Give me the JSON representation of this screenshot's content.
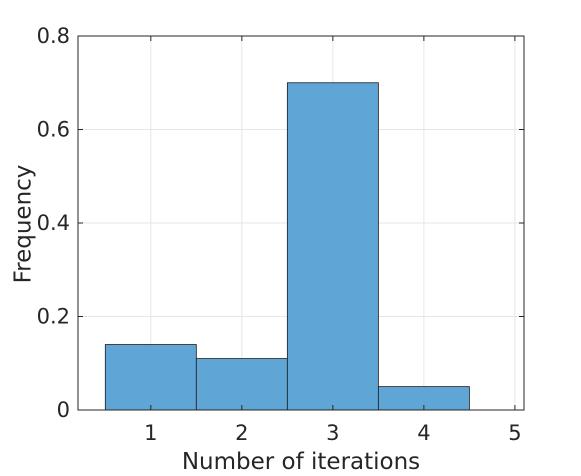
{
  "chart_data": {
    "type": "bar",
    "subtype": "histogram",
    "title": "",
    "xlabel": "Number of iterations",
    "ylabel": "Frequency",
    "categories": [
      "1",
      "2",
      "3",
      "4",
      "5"
    ],
    "x": [
      1,
      2,
      3,
      4,
      5
    ],
    "values": [
      0.14,
      0.11,
      0.7,
      0.05,
      0.0
    ],
    "bin_width": 1,
    "xlim": [
      0.2,
      5.1
    ],
    "ylim": [
      0,
      0.8
    ],
    "xticks": [
      1,
      2,
      3,
      4,
      5
    ],
    "xtick_labels": [
      "1",
      "2",
      "3",
      "4",
      "5"
    ],
    "yticks": [
      0,
      0.2,
      0.4,
      0.6,
      0.8
    ],
    "ytick_labels": [
      "0",
      "0.2",
      "0.4",
      "0.6",
      "0.8"
    ],
    "grid": true,
    "box": true,
    "legend": "none",
    "colors": {
      "bar_fill": "#5fa6d7",
      "bar_edge": "#1a1a1a",
      "axis": "#262626",
      "grid": "#e6e6e6",
      "background": "#ffffff"
    }
  }
}
